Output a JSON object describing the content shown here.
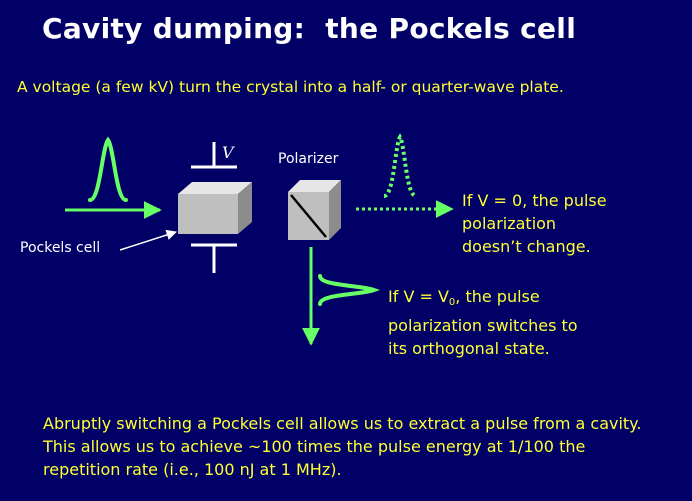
{
  "slide": {
    "title": "Cavity dumping:  the Pockels cell",
    "subtitle": "A voltage (a few kV) turn the crystal into a half- or quarter-wave plate.",
    "labels": {
      "voltage": "V",
      "polarizer": "Polarizer",
      "pockels_cell": "Pockels cell"
    },
    "note_v0": [
      "If V = 0, the pulse",
      "polarization",
      "doesn’t change."
    ],
    "note_vpi": {
      "prefix": "If V = V",
      "subscript": "0",
      "suffix": ", the pulse",
      "line2": "polarization switches to",
      "line3": "its orthogonal state."
    },
    "footer": "Abruptly switching a Pockels cell allows us to extract a pulse from a cavity.  This allows us to achieve ~100 times the pulse energy at 1/100 the repetition rate (i.e., 100 nJ at 1 MHz)."
  },
  "colors": {
    "background": "#000066",
    "title": "#ffffff",
    "text": "#ffff33",
    "beam": "#66ff66",
    "cube_face": "#bfbfbf"
  }
}
